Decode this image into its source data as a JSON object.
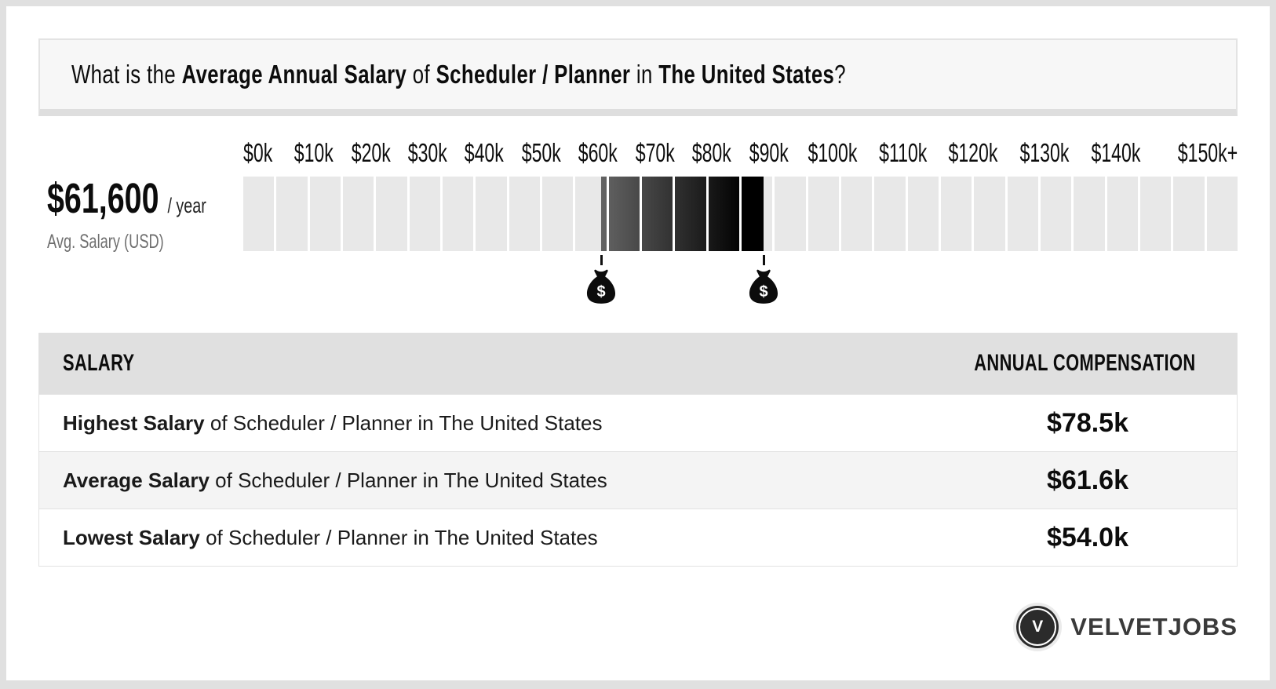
{
  "page": {
    "frame_color": "#e0e0e0",
    "card_color": "#ffffff"
  },
  "title": {
    "prefix": "What is the ",
    "bold_salary": "Average Annual Salary",
    "mid_of": " of ",
    "bold_job": "Scheduler / Planner",
    "mid_in": " in ",
    "bold_country": "The United States",
    "suffix": "?"
  },
  "summary": {
    "amount": "$61,600",
    "period": "/ year",
    "caption": "Avg. Salary (USD)"
  },
  "chart_data": {
    "type": "range-bar",
    "title": "Salary range of Scheduler / Planner in The United States",
    "axis_ticks": [
      "$0k",
      "$10k",
      "$20k",
      "$30k",
      "$40k",
      "$50k",
      "$60k",
      "$70k",
      "$80k",
      "$90k",
      "$100k",
      "$110k",
      "$120k",
      "$130k",
      "$140k",
      "$150k+"
    ],
    "axis_range_k": [
      0,
      150
    ],
    "segment_size_k": 5,
    "segment_count": 30,
    "highlight_range_k": [
      54,
      78.5
    ],
    "markers": [
      {
        "name": "lowest-salary",
        "value_k": 54,
        "label": "$54.0k"
      },
      {
        "name": "highest-salary",
        "value_k": 78.5,
        "label": "$78.5k"
      }
    ],
    "money_bag_symbol": "$",
    "colors": {
      "track": "#e8e8e8",
      "highlight_start": "#646464",
      "highlight_end": "#000000"
    }
  },
  "table": {
    "headers": {
      "salary": "SALARY",
      "compensation": "ANNUAL COMPENSATION"
    },
    "rows": [
      {
        "bold": "Highest Salary",
        "rest": " of Scheduler / Planner in The United States",
        "value": "$78.5k"
      },
      {
        "bold": "Average Salary",
        "rest": " of Scheduler / Planner in The United States",
        "value": "$61.6k"
      },
      {
        "bold": "Lowest Salary",
        "rest": " of Scheduler / Planner in The United States",
        "value": "$54.0k"
      }
    ]
  },
  "logo": {
    "initial": "V",
    "brand": "VELVETJOBS"
  }
}
